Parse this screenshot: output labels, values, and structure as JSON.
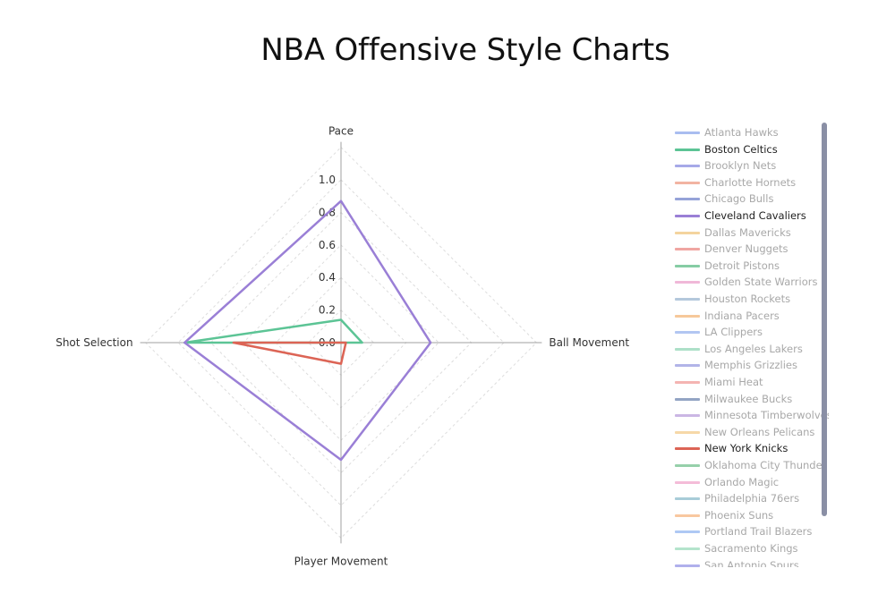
{
  "chart_data": {
    "type": "radar",
    "title": "NBA Offensive Style Charts",
    "axes": [
      "Pace",
      "Ball Movement",
      "Player Movement",
      "Shot Selection"
    ],
    "radial_ticks": [
      "0.0",
      "0.2",
      "0.4",
      "0.6",
      "0.8",
      "1.0"
    ],
    "radial_range": [
      0,
      1.2
    ],
    "grid": "dashed diamonds",
    "legend_position": "right",
    "series": [
      {
        "name": "Atlanta Hawks",
        "color": "#a9bdf0",
        "visible": false
      },
      {
        "name": "Boston Celtics",
        "color": "#5cc495",
        "visible": true,
        "values": [
          0.14,
          0.13,
          0.0,
          0.96
        ]
      },
      {
        "name": "Brooklyn Nets",
        "color": "#a6a9e8",
        "visible": false
      },
      {
        "name": "Charlotte Hornets",
        "color": "#f2b4a2",
        "visible": false
      },
      {
        "name": "Chicago Bulls",
        "color": "#96a3d8",
        "visible": false
      },
      {
        "name": "Cleveland Cavaliers",
        "color": "#9a7fd6",
        "visible": true,
        "values": [
          0.87,
          0.55,
          0.72,
          0.96
        ]
      },
      {
        "name": "Dallas Mavericks",
        "color": "#f4d49e",
        "visible": false
      },
      {
        "name": "Denver Nuggets",
        "color": "#f0a6a2",
        "visible": false
      },
      {
        "name": "Detroit Pistons",
        "color": "#86cca4",
        "visible": false
      },
      {
        "name": "Golden State Warriors",
        "color": "#f0b8d8",
        "visible": false
      },
      {
        "name": "Houston Rockets",
        "color": "#b4c8dc",
        "visible": false
      },
      {
        "name": "Indiana Pacers",
        "color": "#f6c89a",
        "visible": false
      },
      {
        "name": "LA Clippers",
        "color": "#b2c6f2",
        "visible": false
      },
      {
        "name": "Los Angeles Lakers",
        "color": "#ade0c8",
        "visible": false
      },
      {
        "name": "Memphis Grizzlies",
        "color": "#b2b4e8",
        "visible": false
      },
      {
        "name": "Miami Heat",
        "color": "#f4b4b2",
        "visible": false
      },
      {
        "name": "Milwaukee Bucks",
        "color": "#93a4c4",
        "visible": false
      },
      {
        "name": "Minnesota Timberwolves",
        "color": "#cbb6e4",
        "visible": false
      },
      {
        "name": "New Orleans Pelicans",
        "color": "#f6d8a8",
        "visible": false
      },
      {
        "name": "New York Knicks",
        "color": "#dc6455",
        "visible": true,
        "values": [
          0.0,
          0.03,
          0.13,
          0.66
        ]
      },
      {
        "name": "Oklahoma City Thunder",
        "color": "#96d0aa",
        "visible": false
      },
      {
        "name": "Orlando Magic",
        "color": "#f4bcd8",
        "visible": false
      },
      {
        "name": "Philadelphia 76ers",
        "color": "#a8ccd8",
        "visible": false
      },
      {
        "name": "Phoenix Suns",
        "color": "#f8c8a0",
        "visible": false
      },
      {
        "name": "Portland Trail Blazers",
        "color": "#aec8f4",
        "visible": false
      },
      {
        "name": "Sacramento Kings",
        "color": "#b4e4cc",
        "visible": false
      },
      {
        "name": "San Antonio Spurs",
        "color": "#b0b0ec",
        "visible": false
      }
    ]
  }
}
